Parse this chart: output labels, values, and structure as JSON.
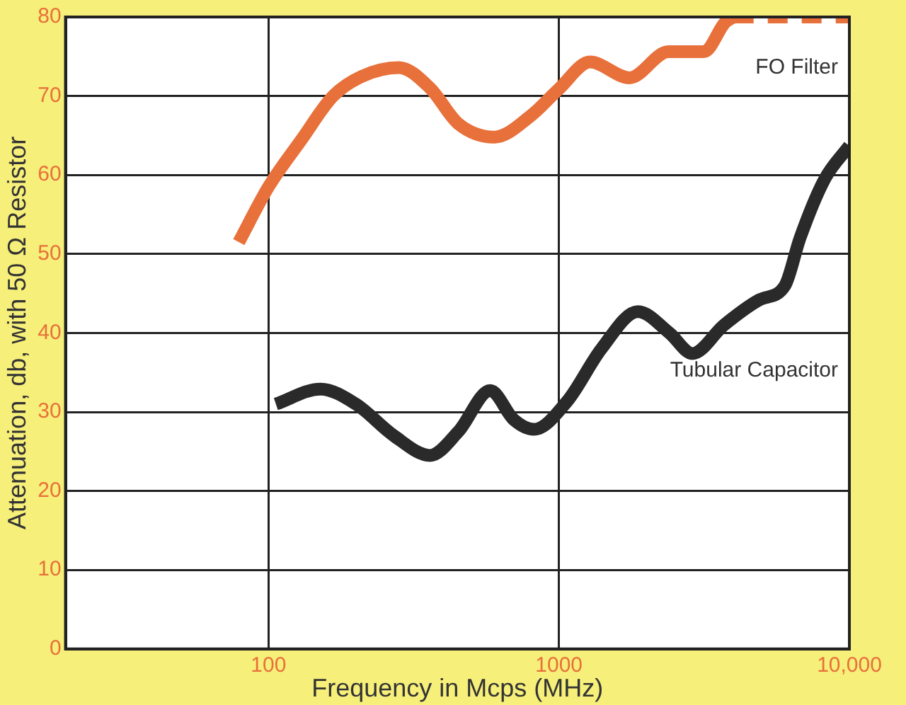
{
  "chart_data": {
    "type": "line",
    "xlabel": "Frequency in Mcps (MHz)",
    "ylabel": "Attenuation, db, with 50 Ω Resistor",
    "log": "x",
    "xlim": [
      20,
      10000
    ],
    "xticks": [
      100,
      1000,
      {
        "value": 10000,
        "label": "10,000"
      }
    ],
    "ylim": [
      0,
      80
    ],
    "yticks": [
      0,
      10,
      20,
      30,
      40,
      50,
      60,
      70,
      80
    ],
    "grid": true,
    "legend": false,
    "marker": "none",
    "series": [
      {
        "name": "FO Filter",
        "color": "#e8703a",
        "line_style": "solid",
        "x": [
          79,
          100,
          130,
          167,
          210,
          281,
          360,
          450,
          600,
          800,
          1000,
          1280,
          1750,
          2380,
          3160,
          3730,
          4000
        ],
        "values": [
          51.5,
          58.5,
          64.5,
          70,
          72.5,
          73.6,
          71,
          66.5,
          64.8,
          67.5,
          70.9,
          74.3,
          72.3,
          75.6,
          75.6,
          79.3,
          80
        ]
      },
      {
        "color": "#e8703a",
        "line_style": "dashed",
        "x": [
          4000,
          10000
        ],
        "values": [
          80,
          80
        ]
      },
      {
        "name": "Tubular Capacitor",
        "color": "#2a2a2a",
        "line_style": "solid",
        "x": [
          106,
          151,
          200,
          270,
          360,
          450,
          580,
          700,
          820,
          1070,
          1400,
          1870,
          2400,
          2880,
          3700,
          4900,
          6000,
          6760,
          8200,
          10000
        ],
        "values": [
          31,
          32.9,
          31,
          27,
          24.5,
          27.5,
          32.7,
          29,
          27.8,
          31.4,
          38,
          42.7,
          40,
          37.4,
          41,
          44.2,
          46,
          52,
          59.4,
          63.7
        ]
      }
    ]
  }
}
